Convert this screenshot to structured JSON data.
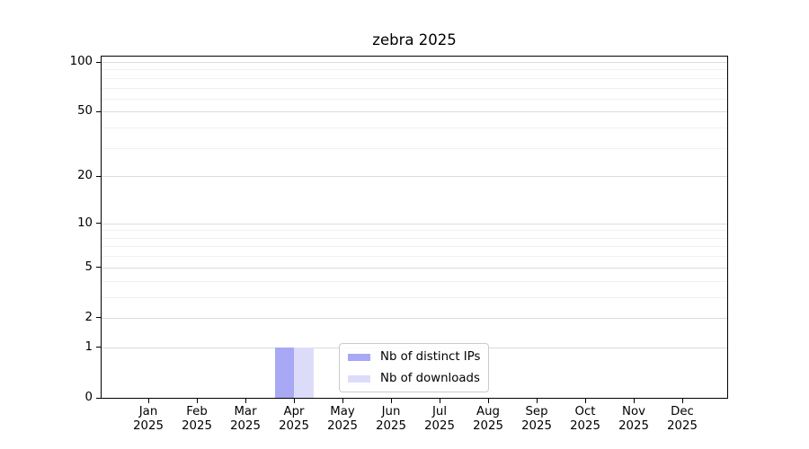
{
  "figure": {
    "title": "zebra 2025"
  },
  "colors": {
    "background": "#ffffff",
    "axis": "#000000",
    "grid_major": "#dcdcdc",
    "grid_minor": "#f1f1f1",
    "bar_distinct_ips": "#a8a8f5",
    "bar_downloads": "#dcdcfa",
    "legend_border": "#cbcbcb"
  },
  "chart_data": {
    "type": "bar",
    "title": "zebra 2025",
    "x_tick_months": [
      "Jan",
      "Feb",
      "Mar",
      "Apr",
      "May",
      "Jun",
      "Jul",
      "Aug",
      "Sep",
      "Oct",
      "Nov",
      "Dec"
    ],
    "x_tick_year": "2025",
    "categories": [
      "Jan 2025",
      "Feb 2025",
      "Mar 2025",
      "Apr 2025",
      "May 2025",
      "Jun 2025",
      "Jul 2025",
      "Aug 2025",
      "Sep 2025",
      "Oct 2025",
      "Nov 2025",
      "Dec 2025"
    ],
    "series": [
      {
        "name": "Nb of distinct IPs",
        "color": "#a8a8f5",
        "values": [
          0,
          0,
          0,
          1,
          0,
          0,
          0,
          0,
          0,
          0,
          0,
          0
        ]
      },
      {
        "name": "Nb of downloads",
        "color": "#dcdcfa",
        "values": [
          0,
          0,
          0,
          1,
          0,
          0,
          0,
          0,
          0,
          0,
          0,
          0
        ]
      }
    ],
    "xlabel": "",
    "ylabel": "",
    "y_scale": "log1p",
    "y_major_ticks": [
      0,
      1,
      2,
      5,
      10,
      20,
      50,
      100
    ],
    "y_minor_ticks": [
      3,
      4,
      6,
      7,
      8,
      9,
      30,
      40,
      60,
      70,
      80,
      90
    ],
    "ylim": [
      0,
      108
    ],
    "grid": "horizontal",
    "legend_position": "lower center"
  }
}
